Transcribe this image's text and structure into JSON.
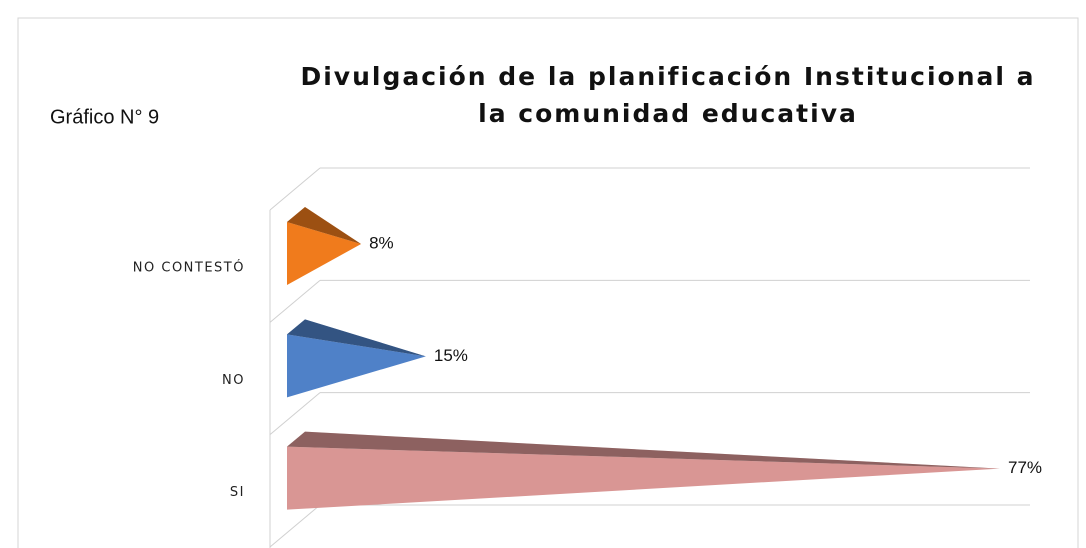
{
  "chart_data": {
    "type": "pyramid-bar",
    "annotation": "Gráfico N° 9",
    "title": [
      "Divulgación de la planificación Institucional a",
      "la comunidad educativa"
    ],
    "categories": [
      "NO CONTESTÓ",
      "NO",
      "SI"
    ],
    "values": [
      8,
      15,
      77
    ],
    "value_labels": [
      "8%",
      "15%",
      "77%"
    ],
    "colors": [
      "#f07b1c",
      "#4f81c8",
      "#d99694"
    ],
    "grid": true
  }
}
